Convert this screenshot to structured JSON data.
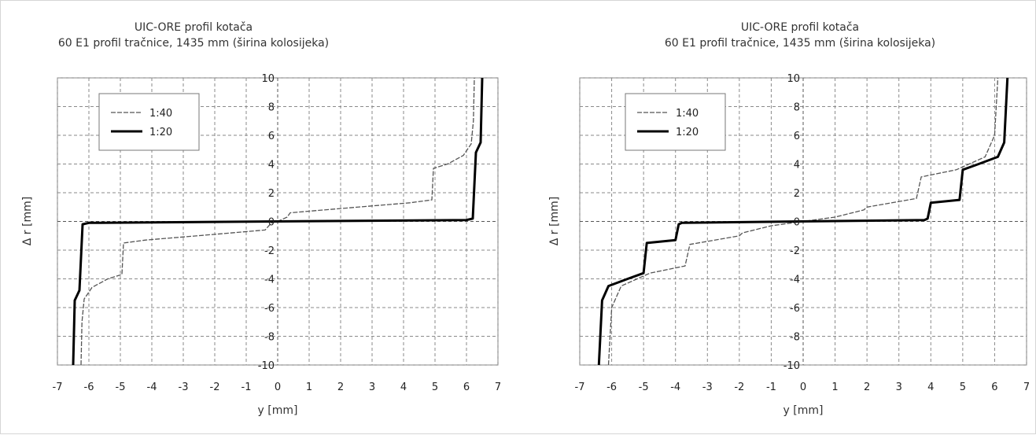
{
  "chart_data": [
    {
      "type": "line",
      "title": "UIC-ORE profil kotača",
      "subtitle": "60 E1 profil tračnice, 1435 mm (širina kolosijeka)",
      "xlabel": "y [mm]",
      "ylabel": "Δ r [mm]",
      "xlim": [
        -7,
        7
      ],
      "ylim": [
        -10,
        10
      ],
      "x_ticks": [
        "-7",
        "-6",
        "-5",
        "-4",
        "-3",
        "-2",
        "-1",
        "0",
        "1",
        "2",
        "3",
        "4",
        "5",
        "6",
        "7"
      ],
      "y_ticks": [
        "10",
        "8",
        "6",
        "4",
        "2",
        "0",
        "-2",
        "-4",
        "-6",
        "-8",
        "-10"
      ],
      "grid": true,
      "legend_position": "top-left",
      "series": [
        {
          "name": "1:40",
          "style": "dashed",
          "points": [
            [
              -6.25,
              -10
            ],
            [
              -6.22,
              -7
            ],
            [
              -6.15,
              -5.4
            ],
            [
              -5.9,
              -4.6
            ],
            [
              -5.4,
              -4.0
            ],
            [
              -4.95,
              -3.7
            ],
            [
              -4.9,
              -1.5
            ],
            [
              -4.2,
              -1.3
            ],
            [
              -2.0,
              -0.9
            ],
            [
              -0.4,
              -0.6
            ],
            [
              -0.2,
              -0.1
            ],
            [
              0,
              0
            ],
            [
              0.3,
              0.3
            ],
            [
              0.4,
              0.6
            ],
            [
              2.0,
              0.9
            ],
            [
              4.2,
              1.3
            ],
            [
              4.9,
              1.5
            ],
            [
              4.95,
              3.7
            ],
            [
              5.4,
              4.0
            ],
            [
              5.9,
              4.6
            ],
            [
              6.15,
              5.4
            ],
            [
              6.22,
              7
            ],
            [
              6.25,
              10
            ]
          ]
        },
        {
          "name": "1:20",
          "style": "solid",
          "points": [
            [
              -6.5,
              -10
            ],
            [
              -6.45,
              -5.5
            ],
            [
              -6.3,
              -4.8
            ],
            [
              -6.2,
              -0.2
            ],
            [
              -6.0,
              -0.1
            ],
            [
              6.0,
              0.1
            ],
            [
              6.2,
              0.2
            ],
            [
              6.3,
              4.8
            ],
            [
              6.45,
              5.5
            ],
            [
              6.5,
              10
            ]
          ]
        }
      ]
    },
    {
      "type": "line",
      "title": "UIC-ORE profil kotača",
      "subtitle": "60 E1 profil tračnice, 1435 mm (širina kolosijeka)",
      "xlabel": "y [mm]",
      "ylabel": "Δ r [mm]",
      "xlim": [
        -7,
        7
      ],
      "ylim": [
        -10,
        10
      ],
      "x_ticks": [
        "-7",
        "-6",
        "-5",
        "-4",
        "-3",
        "-2",
        "-1",
        "0",
        "1",
        "2",
        "3",
        "4",
        "5",
        "6",
        "7"
      ],
      "y_ticks": [
        "10",
        "8",
        "6",
        "4",
        "2",
        "0",
        "-2",
        "-4",
        "-6",
        "-8",
        "-10"
      ],
      "grid": true,
      "legend_position": "top-left",
      "series": [
        {
          "name": "1:40",
          "style": "dashed",
          "points": [
            [
              -6.1,
              -10
            ],
            [
              -6.0,
              -6
            ],
            [
              -5.7,
              -4.5
            ],
            [
              -4.8,
              -3.6
            ],
            [
              -3.7,
              -3.1
            ],
            [
              -3.55,
              -1.6
            ],
            [
              -2.0,
              -1.0
            ],
            [
              -1.9,
              -0.8
            ],
            [
              -1.0,
              -0.3
            ],
            [
              0,
              0
            ],
            [
              1.0,
              0.3
            ],
            [
              1.9,
              0.8
            ],
            [
              2.0,
              1.0
            ],
            [
              3.55,
              1.6
            ],
            [
              3.7,
              3.1
            ],
            [
              4.8,
              3.6
            ],
            [
              5.7,
              4.5
            ],
            [
              6.0,
              6
            ],
            [
              6.1,
              10
            ]
          ]
        },
        {
          "name": "1:20",
          "style": "solid",
          "points": [
            [
              -6.4,
              -10
            ],
            [
              -6.3,
              -5.5
            ],
            [
              -6.1,
              -4.5
            ],
            [
              -5.5,
              -4.0
            ],
            [
              -5.0,
              -3.6
            ],
            [
              -4.9,
              -1.5
            ],
            [
              -4.0,
              -1.3
            ],
            [
              -3.9,
              -0.2
            ],
            [
              -3.8,
              -0.1
            ],
            [
              3.8,
              0.1
            ],
            [
              3.9,
              0.2
            ],
            [
              4.0,
              1.3
            ],
            [
              4.9,
              1.5
            ],
            [
              5.0,
              3.6
            ],
            [
              5.5,
              4.0
            ],
            [
              6.1,
              4.5
            ],
            [
              6.3,
              5.5
            ],
            [
              6.4,
              10
            ]
          ]
        }
      ]
    }
  ]
}
